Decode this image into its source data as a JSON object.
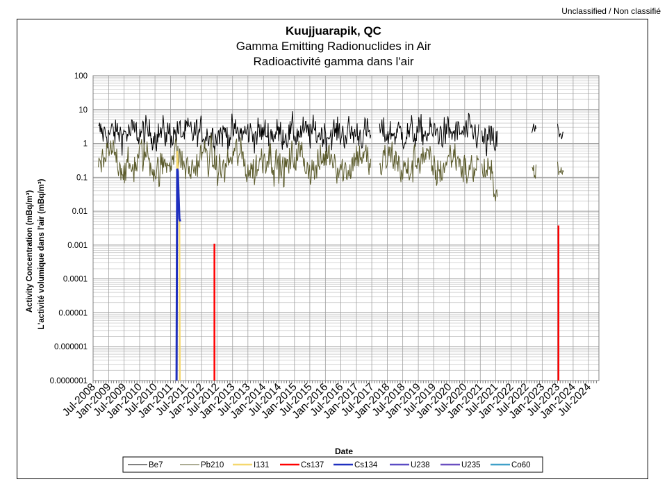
{
  "page": {
    "classification": "Unclassified / Non classifié"
  },
  "chart_data": {
    "type": "line",
    "title": "Kuujjuarapik, QC",
    "subtitle_en": "Gamma Emitting Radionuclides in Air",
    "subtitle_fr": "Radioactivité gamma dans l'air",
    "xlabel": "Date",
    "ylabel_en": "Activity Concentration  (mBq/m³)",
    "ylabel_fr": "L'activité volumique dans l'air (mBq/m³)",
    "y_scale": "log",
    "ylim": [
      1e-07,
      100
    ],
    "y_ticks": [
      "100",
      "10",
      "1",
      "0.1",
      "0.01",
      "0.001",
      "0.0001",
      "0.00001",
      "0.000001",
      "0.0000001"
    ],
    "xlim": [
      "2008-07-01",
      "2024-10-31"
    ],
    "x_ticks": [
      "Jul-2008",
      "Jan-2009",
      "Jul-2009",
      "Jan-2010",
      "Jul-2010",
      "Jan-2011",
      "Jul-2011",
      "Jan-2012",
      "Jul-2012",
      "Jan-2013",
      "Jul-2013",
      "Jan-2014",
      "Jul-2014",
      "Jan-2015",
      "Jul-2015",
      "Jan-2016",
      "Jul-2016",
      "Jan-2017",
      "Jul-2017",
      "Jan-2018",
      "Jul-2018",
      "Jan-2019",
      "Jul-2019",
      "Jan-2020",
      "Jul-2020",
      "Jan-2021",
      "Jul-2021",
      "Jan-2022",
      "Jul-2022",
      "Jan-2023",
      "Jul-2023",
      "Jan-2024",
      "Jul-2024"
    ],
    "grid": true,
    "legend_position": "bottom",
    "series": [
      {
        "name": "Be7",
        "color": "#000000",
        "segments": [
          {
            "start": "2008-09-01",
            "end": "2017-06-20",
            "center": 2.0,
            "spread": 0.22
          },
          {
            "start": "2017-10-01",
            "end": "2020-12-15",
            "center": 2.0,
            "spread": 0.22
          },
          {
            "start": "2021-01-20",
            "end": "2021-07-25",
            "center": 1.1,
            "spread": 0.25
          },
          {
            "start": "2022-09-01",
            "end": "2022-10-20",
            "center": 2.2,
            "spread": 0.2
          },
          {
            "start": "2023-07-01",
            "end": "2023-09-10",
            "center": 2.3,
            "spread": 0.2
          }
        ]
      },
      {
        "name": "Pb210",
        "color": "#5a5a2a",
        "segments": [
          {
            "start": "2008-09-01",
            "end": "2017-06-20",
            "center": 0.28,
            "spread": 0.25
          },
          {
            "start": "2017-10-01",
            "end": "2020-12-15",
            "center": 0.25,
            "spread": 0.25
          },
          {
            "start": "2021-01-20",
            "end": "2021-07-25",
            "center": 0.09,
            "spread": 0.22
          },
          {
            "start": "2022-09-01",
            "end": "2022-10-20",
            "center": 0.25,
            "spread": 0.15
          },
          {
            "start": "2023-07-01",
            "end": "2023-09-10",
            "center": 0.22,
            "spread": 0.2
          }
        ]
      },
      {
        "name": "I131",
        "color": "#f5d76e",
        "points": [
          [
            "2011-03-15",
            1e-07
          ],
          [
            "2011-03-20",
            0.6
          ],
          [
            "2011-03-27",
            0.25
          ],
          [
            "2011-04-05",
            0.05
          ],
          [
            "2011-04-15",
            0.005
          ],
          [
            "2011-04-20",
            1e-07
          ]
        ]
      },
      {
        "name": "Cs137",
        "color": "#ff0000",
        "points": [
          [
            "2012-06-01",
            1e-07
          ],
          [
            "2012-06-01",
            0.0011
          ],
          [
            "2023-07-12",
            1e-07
          ],
          [
            "2023-07-12",
            0.0038
          ]
        ]
      },
      {
        "name": "Cs134",
        "color": "#1f2fbf",
        "points": [
          [
            "2011-03-12",
            1e-07
          ],
          [
            "2011-03-20",
            0.18
          ],
          [
            "2011-03-27",
            0.15
          ],
          [
            "2011-04-05",
            0.03
          ],
          [
            "2011-04-15",
            0.006
          ],
          [
            "2011-04-25",
            0.005
          ]
        ]
      },
      {
        "name": "U238",
        "color": "#5b4bc4",
        "points": []
      },
      {
        "name": "U235",
        "color": "#6a4fc0",
        "points": []
      },
      {
        "name": "Co60",
        "color": "#3fa0c8",
        "points": []
      }
    ]
  }
}
